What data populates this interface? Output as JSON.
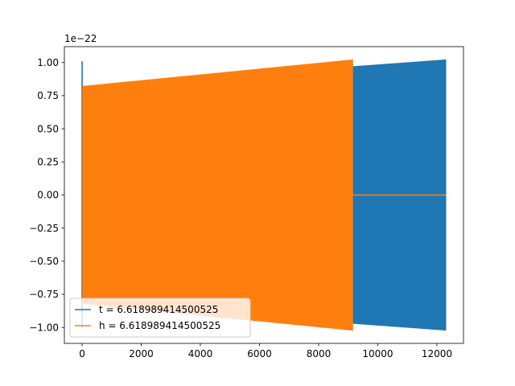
{
  "chart_data": {
    "type": "line",
    "offset_text": "1e−22",
    "xlim": [
      -600,
      12900
    ],
    "ylim": [
      -1.12,
      1.12
    ],
    "x_ticks": [
      0,
      2000,
      4000,
      6000,
      8000,
      10000,
      12000
    ],
    "x_tick_labels": [
      "0",
      "2000",
      "4000",
      "6000",
      "8000",
      "10000",
      "12000"
    ],
    "y_ticks": [
      -1.0,
      -0.75,
      -0.5,
      -0.25,
      0.0,
      0.25,
      0.5,
      0.75,
      1.0
    ],
    "y_tick_labels": [
      "−1.00",
      "−0.75",
      "−0.50",
      "−0.25",
      "0.00",
      "0.25",
      "0.50",
      "0.75",
      "1.00"
    ],
    "grid": false,
    "legend_position": "lower-left",
    "series": [
      {
        "name": "t = 6.618989414500525",
        "color": "#1f77b4",
        "spike": {
          "x": 0,
          "y_max": 1.01,
          "y_min": -1.01
        },
        "envelope": {
          "x": [
            20,
            12300
          ],
          "upper": [
            0.82,
            1.02
          ],
          "lower": [
            -0.82,
            -1.02
          ]
        }
      },
      {
        "name": "h = 6.618989414500525",
        "color": "#ff7f0e",
        "envelope": {
          "x": [
            20,
            9150
          ],
          "upper": [
            0.82,
            1.02
          ],
          "lower": [
            -0.82,
            -1.02
          ]
        },
        "tail": {
          "x": [
            9150,
            12300
          ],
          "y": 0.0
        }
      }
    ]
  }
}
